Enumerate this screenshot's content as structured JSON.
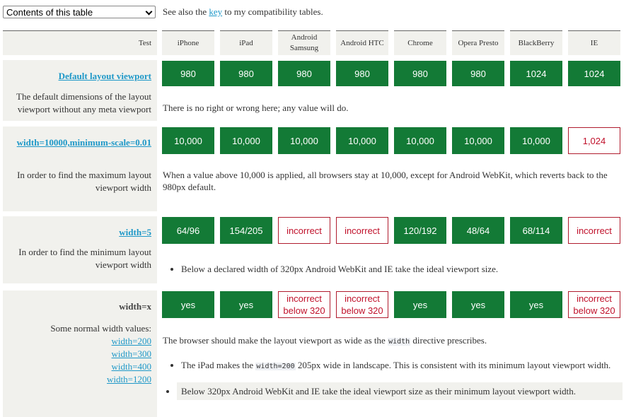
{
  "select": {
    "label": "Contents of this table"
  },
  "see_also": {
    "before": "See also the ",
    "link": "key",
    "after": " to my compatibility tables."
  },
  "table": {
    "header": [
      "Test",
      "iPhone",
      "iPad",
      "Android Samsung",
      "Android HTC",
      "Chrome",
      "Opera Presto",
      "BlackBerry",
      "IE"
    ],
    "sections": [
      {
        "title": "Default layout viewport",
        "title_link": true,
        "description": "The default dimensions of the layout viewport without any meta viewport",
        "cells": [
          {
            "text": "980",
            "status": "good"
          },
          {
            "text": "980",
            "status": "good"
          },
          {
            "text": "980",
            "status": "good"
          },
          {
            "text": "980",
            "status": "good"
          },
          {
            "text": "980",
            "status": "good"
          },
          {
            "text": "980",
            "status": "good"
          },
          {
            "text": "1024",
            "status": "good"
          },
          {
            "text": "1024",
            "status": "good"
          }
        ],
        "notes": [
          {
            "kind": "p",
            "segments": [
              {
                "t": "There is no right or wrong here; any value will do."
              }
            ]
          }
        ]
      },
      {
        "title": "width=10000,minimum-scale=0.01",
        "title_link": true,
        "description": "In order to find the maximum layout viewport width",
        "cells": [
          {
            "text": "10,000",
            "status": "good"
          },
          {
            "text": "10,000",
            "status": "good"
          },
          {
            "text": "10,000",
            "status": "good"
          },
          {
            "text": "10,000",
            "status": "good"
          },
          {
            "text": "10,000",
            "status": "good"
          },
          {
            "text": "10,000",
            "status": "good"
          },
          {
            "text": "10,000",
            "status": "good"
          },
          {
            "text": "1,024",
            "status": "bad"
          }
        ],
        "notes": [
          {
            "kind": "p",
            "segments": [
              {
                "t": "When a value above 10,000 is applied, all browsers stay at 10,000, except for Android WebKit, which reverts back to the 980px default."
              }
            ]
          }
        ]
      },
      {
        "title": "width=5",
        "title_link": true,
        "description": "In order to find the minimum layout viewport width",
        "cells": [
          {
            "text": "64/96",
            "status": "good"
          },
          {
            "text": "154/205",
            "status": "good"
          },
          {
            "text": "incorrect",
            "status": "bad"
          },
          {
            "text": "incorrect",
            "status": "bad"
          },
          {
            "text": "120/192",
            "status": "good"
          },
          {
            "text": "48/64",
            "status": "good"
          },
          {
            "text": "68/114",
            "status": "good"
          },
          {
            "text": "incorrect",
            "status": "bad"
          }
        ],
        "notes": [
          {
            "kind": "li",
            "segments": [
              {
                "t": "Below a declared width of 320px Android WebKit and IE take the ideal viewport size."
              }
            ]
          }
        ]
      },
      {
        "title": "width=x",
        "title_link": false,
        "description": "Some normal width values:",
        "links": [
          "width=200",
          "width=300",
          "width=400",
          "width=1200"
        ],
        "cells": [
          {
            "text": "yes",
            "status": "good"
          },
          {
            "text": "yes",
            "status": "good"
          },
          {
            "text": "incorrect below 320",
            "status": "bad"
          },
          {
            "text": "incorrect below 320",
            "status": "bad"
          },
          {
            "text": "yes",
            "status": "good"
          },
          {
            "text": "yes",
            "status": "good"
          },
          {
            "text": "yes",
            "status": "good"
          },
          {
            "text": "incorrect below 320",
            "status": "bad"
          }
        ],
        "notes": [
          {
            "kind": "p",
            "segments": [
              {
                "t": "The browser should make the layout viewport as wide as the "
              },
              {
                "code": "width"
              },
              {
                "t": " directive prescribes."
              }
            ]
          },
          {
            "kind": "li",
            "segments": [
              {
                "t": "The iPad makes the "
              },
              {
                "code": "width=200"
              },
              {
                "t": " 205px wide in landscape. This is consistent with its minimum layout viewport width."
              }
            ]
          },
          {
            "kind": "li",
            "highlight": true,
            "segments": [
              {
                "t": "Below 320px Android WebKit and IE take the ideal viewport size as their minimum layout viewport width."
              }
            ]
          }
        ]
      }
    ]
  }
}
